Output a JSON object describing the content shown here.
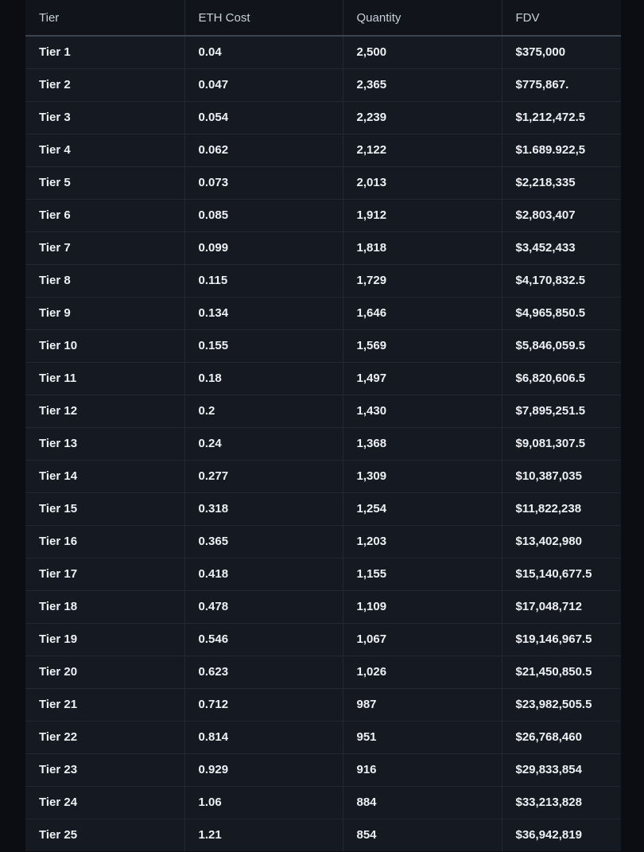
{
  "theme": {
    "page_bg": "#0b0d12",
    "header_bg": "#11141b",
    "row_bg": "#151a22",
    "divider": "#232933",
    "header_divider": "#3d4450",
    "header_text": "#c9cfda",
    "body_text": "#eef0f4"
  },
  "chart_data": {
    "type": "table",
    "title": "",
    "columns": [
      "Tier",
      "ETH Cost",
      "Quantity",
      "FDV"
    ],
    "rows": [
      {
        "tier": "Tier 1",
        "eth_cost": "0.04",
        "quantity": "2,500",
        "fdv": "$375,000"
      },
      {
        "tier": "Tier 2",
        "eth_cost": "0.047",
        "quantity": "2,365",
        "fdv": "$775,867."
      },
      {
        "tier": "Tier 3",
        "eth_cost": "0.054",
        "quantity": "2,239",
        "fdv": "$1,212,472.5"
      },
      {
        "tier": "Tier 4",
        "eth_cost": "0.062",
        "quantity": "2,122",
        "fdv": "$1.689.922,5"
      },
      {
        "tier": "Tier 5",
        "eth_cost": "0.073",
        "quantity": "2,013",
        "fdv": "$2,218,335"
      },
      {
        "tier": "Tier 6",
        "eth_cost": "0.085",
        "quantity": "1,912",
        "fdv": "$2,803,407"
      },
      {
        "tier": "Tier 7",
        "eth_cost": "0.099",
        "quantity": "1,818",
        "fdv": "$3,452,433"
      },
      {
        "tier": "Tier 8",
        "eth_cost": "0.115",
        "quantity": "1,729",
        "fdv": "$4,170,832.5"
      },
      {
        "tier": "Tier 9",
        "eth_cost": "0.134",
        "quantity": "1,646",
        "fdv": "$4,965,850.5"
      },
      {
        "tier": "Tier 10",
        "eth_cost": "0.155",
        "quantity": "1,569",
        "fdv": "$5,846,059.5"
      },
      {
        "tier": "Tier 11",
        "eth_cost": "0.18",
        "quantity": "1,497",
        "fdv": "$6,820,606.5"
      },
      {
        "tier": "Tier 12",
        "eth_cost": "0.2",
        "quantity": "1,430",
        "fdv": "$7,895,251.5"
      },
      {
        "tier": "Tier 13",
        "eth_cost": "0.24",
        "quantity": "1,368",
        "fdv": "$9,081,307.5"
      },
      {
        "tier": "Tier 14",
        "eth_cost": "0.277",
        "quantity": "1,309",
        "fdv": "$10,387,035"
      },
      {
        "tier": "Tier 15",
        "eth_cost": "0.318",
        "quantity": "1,254",
        "fdv": "$11,822,238"
      },
      {
        "tier": "Tier 16",
        "eth_cost": "0.365",
        "quantity": "1,203",
        "fdv": "$13,402,980"
      },
      {
        "tier": "Tier 17",
        "eth_cost": "0.418",
        "quantity": "1,155",
        "fdv": "$15,140,677.5"
      },
      {
        "tier": "Tier 18",
        "eth_cost": "0.478",
        "quantity": "1,109",
        "fdv": "$17,048,712"
      },
      {
        "tier": "Tier 19",
        "eth_cost": "0.546",
        "quantity": "1,067",
        "fdv": "$19,146,967.5"
      },
      {
        "tier": "Tier 20",
        "eth_cost": "0.623",
        "quantity": "1,026",
        "fdv": "$21,450,850.5"
      },
      {
        "tier": "Tier 21",
        "eth_cost": "0.712",
        "quantity": "987",
        "fdv": "$23,982,505.5"
      },
      {
        "tier": "Tier 22",
        "eth_cost": "0.814",
        "quantity": "951",
        "fdv": "$26,768,460"
      },
      {
        "tier": "Tier 23",
        "eth_cost": "0.929",
        "quantity": "916",
        "fdv": "$29,833,854"
      },
      {
        "tier": "Tier 24",
        "eth_cost": "1.06",
        "quantity": "884",
        "fdv": "$33,213,828"
      },
      {
        "tier": "Tier 25",
        "eth_cost": "1.21",
        "quantity": "854",
        "fdv": "$36,942,819"
      }
    ]
  }
}
